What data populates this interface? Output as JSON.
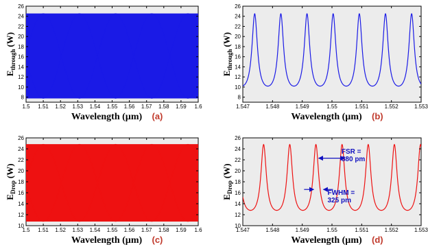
{
  "colors": {
    "blue": "#1a1ae6",
    "red": "#ee1111",
    "panel_bg": "#ececec",
    "letter": "#c0392b",
    "annotation": "#1010c0"
  },
  "chart_data": [
    {
      "id": "a",
      "type": "line",
      "panel_label": "(a)",
      "xlabel": "Wavelength (µm)",
      "ylabel_main": "E",
      "ylabel_sub": "through",
      "ylabel_unit": "(W)",
      "xlim": [
        1.5,
        1.6
      ],
      "ylim": [
        7,
        26
      ],
      "xticks": [
        1.5,
        1.51,
        1.52,
        1.53,
        1.54,
        1.55,
        1.56,
        1.57,
        1.58,
        1.59,
        1.6
      ],
      "xticklabels": [
        "1.5",
        "1.51",
        "1.52",
        "1.53",
        "1.54",
        "1.55",
        "1.56",
        "1.57",
        "1.58",
        "1.59",
        "1.6"
      ],
      "yticks": [
        8,
        10,
        12,
        14,
        16,
        18,
        20,
        22,
        24,
        26
      ],
      "yticklabels": [
        "8",
        "10",
        "12",
        "14",
        "16",
        "18",
        "20",
        "22",
        "24",
        "26"
      ],
      "color": "blue",
      "series": [
        {
          "model": "periodic-dense",
          "min": 7.8,
          "max": 24.5,
          "fsr_um": 0.00088,
          "x_range": [
            1.5,
            1.6
          ],
          "beat_center": 1.531
        }
      ],
      "grid": false
    },
    {
      "id": "b",
      "type": "line",
      "panel_label": "(b)",
      "xlabel": "Wavelength (µm)",
      "ylabel_main": "E",
      "ylabel_sub": "through",
      "ylabel_unit": "(W)",
      "xlim": [
        1.547,
        1.553
      ],
      "ylim": [
        7,
        26
      ],
      "xticks": [
        1.547,
        1.548,
        1.549,
        1.55,
        1.551,
        1.552,
        1.553
      ],
      "xticklabels": [
        "1.547",
        "1.548",
        "1.549",
        "1.55",
        "1.551",
        "1.552",
        "1.553"
      ],
      "yticks": [
        8,
        10,
        12,
        14,
        16,
        18,
        20,
        22,
        24,
        26
      ],
      "yticklabels": [
        "8",
        "10",
        "12",
        "14",
        "16",
        "18",
        "20",
        "22",
        "24",
        "26"
      ],
      "color": "blue",
      "series": [
        {
          "model": "periodic",
          "min": 7.8,
          "max": 24.5,
          "fsr_um": 0.00088,
          "peak_at": 1.5474
        }
      ],
      "grid": false
    },
    {
      "id": "c",
      "type": "line",
      "panel_label": "(c)",
      "xlabel": "Wavelength (µm)",
      "ylabel_main": "E",
      "ylabel_sub": "Drop",
      "ylabel_unit": "(W)",
      "xlim": [
        1.5,
        1.6
      ],
      "ylim": [
        10,
        26
      ],
      "xticks": [
        1.5,
        1.51,
        1.52,
        1.53,
        1.54,
        1.55,
        1.56,
        1.57,
        1.58,
        1.59,
        1.6
      ],
      "xticklabels": [
        "1.5",
        "1.51",
        "1.52",
        "1.53",
        "1.54",
        "1.55",
        "1.56",
        "1.57",
        "1.58",
        "1.59",
        "1.6"
      ],
      "yticks": [
        10,
        12,
        14,
        16,
        18,
        20,
        22,
        24,
        26
      ],
      "yticklabels": [
        "10",
        "12",
        "14",
        "16",
        "18",
        "20",
        "22",
        "24",
        "26"
      ],
      "color": "red",
      "series": [
        {
          "model": "periodic-dense",
          "min": 10.8,
          "max": 24.8,
          "fsr_um": 0.00088,
          "x_range": [
            1.5,
            1.6
          ],
          "beat_center": 1.531
        }
      ],
      "grid": false
    },
    {
      "id": "d",
      "type": "line",
      "panel_label": "(d)",
      "xlabel": "Wavelength (µm)",
      "ylabel_main": "E",
      "ylabel_sub": "Drop",
      "ylabel_unit": "(W)",
      "xlim": [
        1.547,
        1.553
      ],
      "ylim": [
        10,
        26
      ],
      "xticks": [
        1.547,
        1.548,
        1.549,
        1.55,
        1.551,
        1.552,
        1.553
      ],
      "xticklabels": [
        "1.547",
        "1.548",
        "1.549",
        "1.55",
        "1.551",
        "1.552",
        "1.553"
      ],
      "yticks": [
        10,
        12,
        14,
        16,
        18,
        20,
        22,
        24,
        26
      ],
      "yticklabels": [
        "10",
        "12",
        "14",
        "16",
        "18",
        "20",
        "22",
        "24",
        "26"
      ],
      "color": "red",
      "series": [
        {
          "model": "periodic",
          "min": 10.8,
          "max": 24.8,
          "fsr_um": 0.00088,
          "peak_at": 1.5477
        }
      ],
      "annotations": [
        {
          "lines": [
            "FSR =",
            "880 pm"
          ],
          "text_at": [
            1.55032,
            23.1
          ],
          "arrow": "double",
          "from": [
            1.54955,
            22.3
          ],
          "to": [
            1.55043,
            22.3
          ]
        },
        {
          "lines": [
            "FWHM =",
            "325 pm"
          ],
          "text_at": [
            1.54985,
            15.6
          ],
          "arrow": "inward",
          "from": [
            1.549385,
            16.6
          ],
          "to": [
            1.54971,
            16.6
          ]
        }
      ],
      "grid": false
    }
  ]
}
